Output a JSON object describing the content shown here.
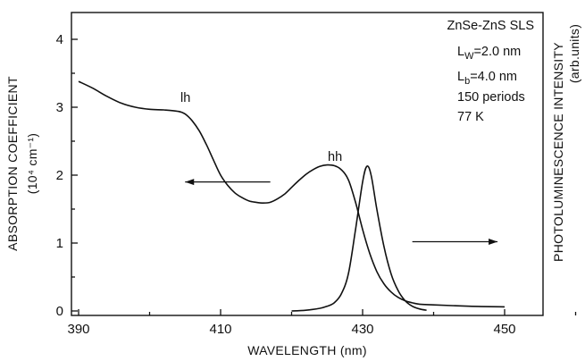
{
  "chart_data": {
    "type": "line",
    "xlabel": "WAVELENGTH  (nm)",
    "ylabel": "ABSORPTION  COEFFICIENT",
    "ylabel_unit": "(10⁴ cm⁻¹)",
    "y2label": "PHOTOLUMINESCENCE  INTENSITY",
    "y2label_unit": "(arb.units)",
    "xlim": [
      390,
      452
    ],
    "ylim": [
      -0.1,
      4.4
    ],
    "x_ticks": [
      "390",
      "410",
      "430",
      "450"
    ],
    "y_ticks": [
      "0",
      "1",
      "2",
      "3",
      "4"
    ],
    "grid": false,
    "sample_info": [
      "ZnSe-ZnS SLS",
      "L",
      "=2.0 nm",
      "L",
      "=4.0 nm",
      "150 periods",
      "77 K"
    ],
    "sample_info_subscripts": [
      "W",
      "b"
    ],
    "peak_labels": [
      "lh",
      "hh"
    ],
    "series": [
      {
        "axis": "left",
        "points": [
          [
            390,
            3.38
          ],
          [
            392,
            3.28
          ],
          [
            394,
            3.16
          ],
          [
            396,
            3.06
          ],
          [
            398,
            3.0
          ],
          [
            400,
            2.97
          ],
          [
            402,
            2.96
          ],
          [
            404,
            2.94
          ],
          [
            405,
            2.9
          ],
          [
            406,
            2.8
          ],
          [
            407,
            2.65
          ],
          [
            408,
            2.45
          ],
          [
            409,
            2.22
          ],
          [
            410,
            2.0
          ],
          [
            411,
            1.85
          ],
          [
            412,
            1.74
          ],
          [
            413,
            1.67
          ],
          [
            414,
            1.62
          ],
          [
            415,
            1.6
          ],
          [
            416,
            1.59
          ],
          [
            417,
            1.6
          ],
          [
            418,
            1.65
          ],
          [
            419,
            1.72
          ],
          [
            420,
            1.82
          ],
          [
            421,
            1.92
          ],
          [
            422,
            2.01
          ],
          [
            423,
            2.08
          ],
          [
            424,
            2.13
          ],
          [
            425,
            2.15
          ],
          [
            426,
            2.14
          ],
          [
            427,
            2.08
          ],
          [
            428,
            1.93
          ],
          [
            429,
            1.6
          ],
          [
            430,
            1.2
          ],
          [
            431,
            0.85
          ],
          [
            432,
            0.58
          ],
          [
            433,
            0.4
          ],
          [
            434,
            0.28
          ],
          [
            435,
            0.2
          ],
          [
            436,
            0.15
          ],
          [
            437,
            0.12
          ],
          [
            438,
            0.1
          ],
          [
            440,
            0.09
          ],
          [
            445,
            0.07
          ],
          [
            450,
            0.06
          ]
        ]
      },
      {
        "axis": "right",
        "points": [
          [
            420,
            0.0
          ],
          [
            422,
            0.01
          ],
          [
            424,
            0.04
          ],
          [
            425,
            0.07
          ],
          [
            426,
            0.12
          ],
          [
            427,
            0.25
          ],
          [
            428,
            0.55
          ],
          [
            429,
            1.2
          ],
          [
            430,
            1.9
          ],
          [
            430.6,
            2.13
          ],
          [
            431.2,
            2.0
          ],
          [
            432,
            1.5
          ],
          [
            433,
            0.95
          ],
          [
            434,
            0.55
          ],
          [
            435,
            0.3
          ],
          [
            436,
            0.15
          ],
          [
            437,
            0.07
          ],
          [
            438,
            0.03
          ],
          [
            439,
            0.01
          ]
        ]
      }
    ],
    "arrows": [
      {
        "direction": "left",
        "from": [
          417,
          1.9
        ],
        "to": [
          405,
          1.9
        ]
      },
      {
        "direction": "right",
        "from": [
          437,
          1.02
        ],
        "to": [
          449,
          1.02
        ]
      }
    ]
  }
}
